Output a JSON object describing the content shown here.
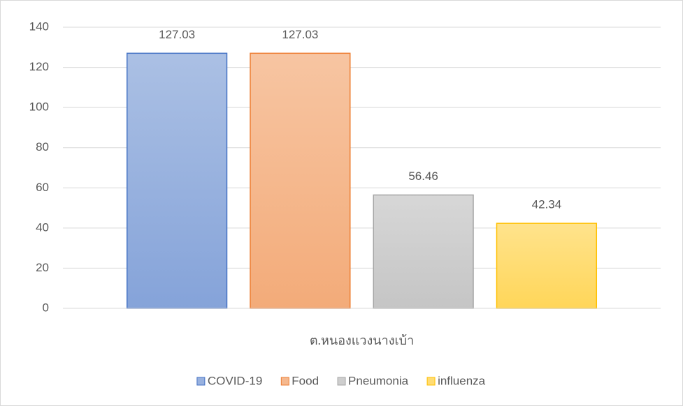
{
  "chart_data": {
    "type": "bar",
    "categories": [
      "ต.หนองแวงนางเบ้า"
    ],
    "series": [
      {
        "name": "COVID-19",
        "color": "#4472c4",
        "values": [
          127.03
        ]
      },
      {
        "name": "Food",
        "color": "#ed7d31",
        "values": [
          127.03
        ]
      },
      {
        "name": "Pneumonia",
        "color": "#a5a5a5",
        "values": [
          56.46
        ]
      },
      {
        "name": "influenza",
        "color": "#ffc000",
        "values": [
          42.34
        ]
      }
    ],
    "ylim": [
      0,
      140
    ],
    "yticks": [
      0,
      20,
      40,
      60,
      80,
      100,
      120,
      140
    ],
    "grid": true,
    "legend": "bottom"
  }
}
